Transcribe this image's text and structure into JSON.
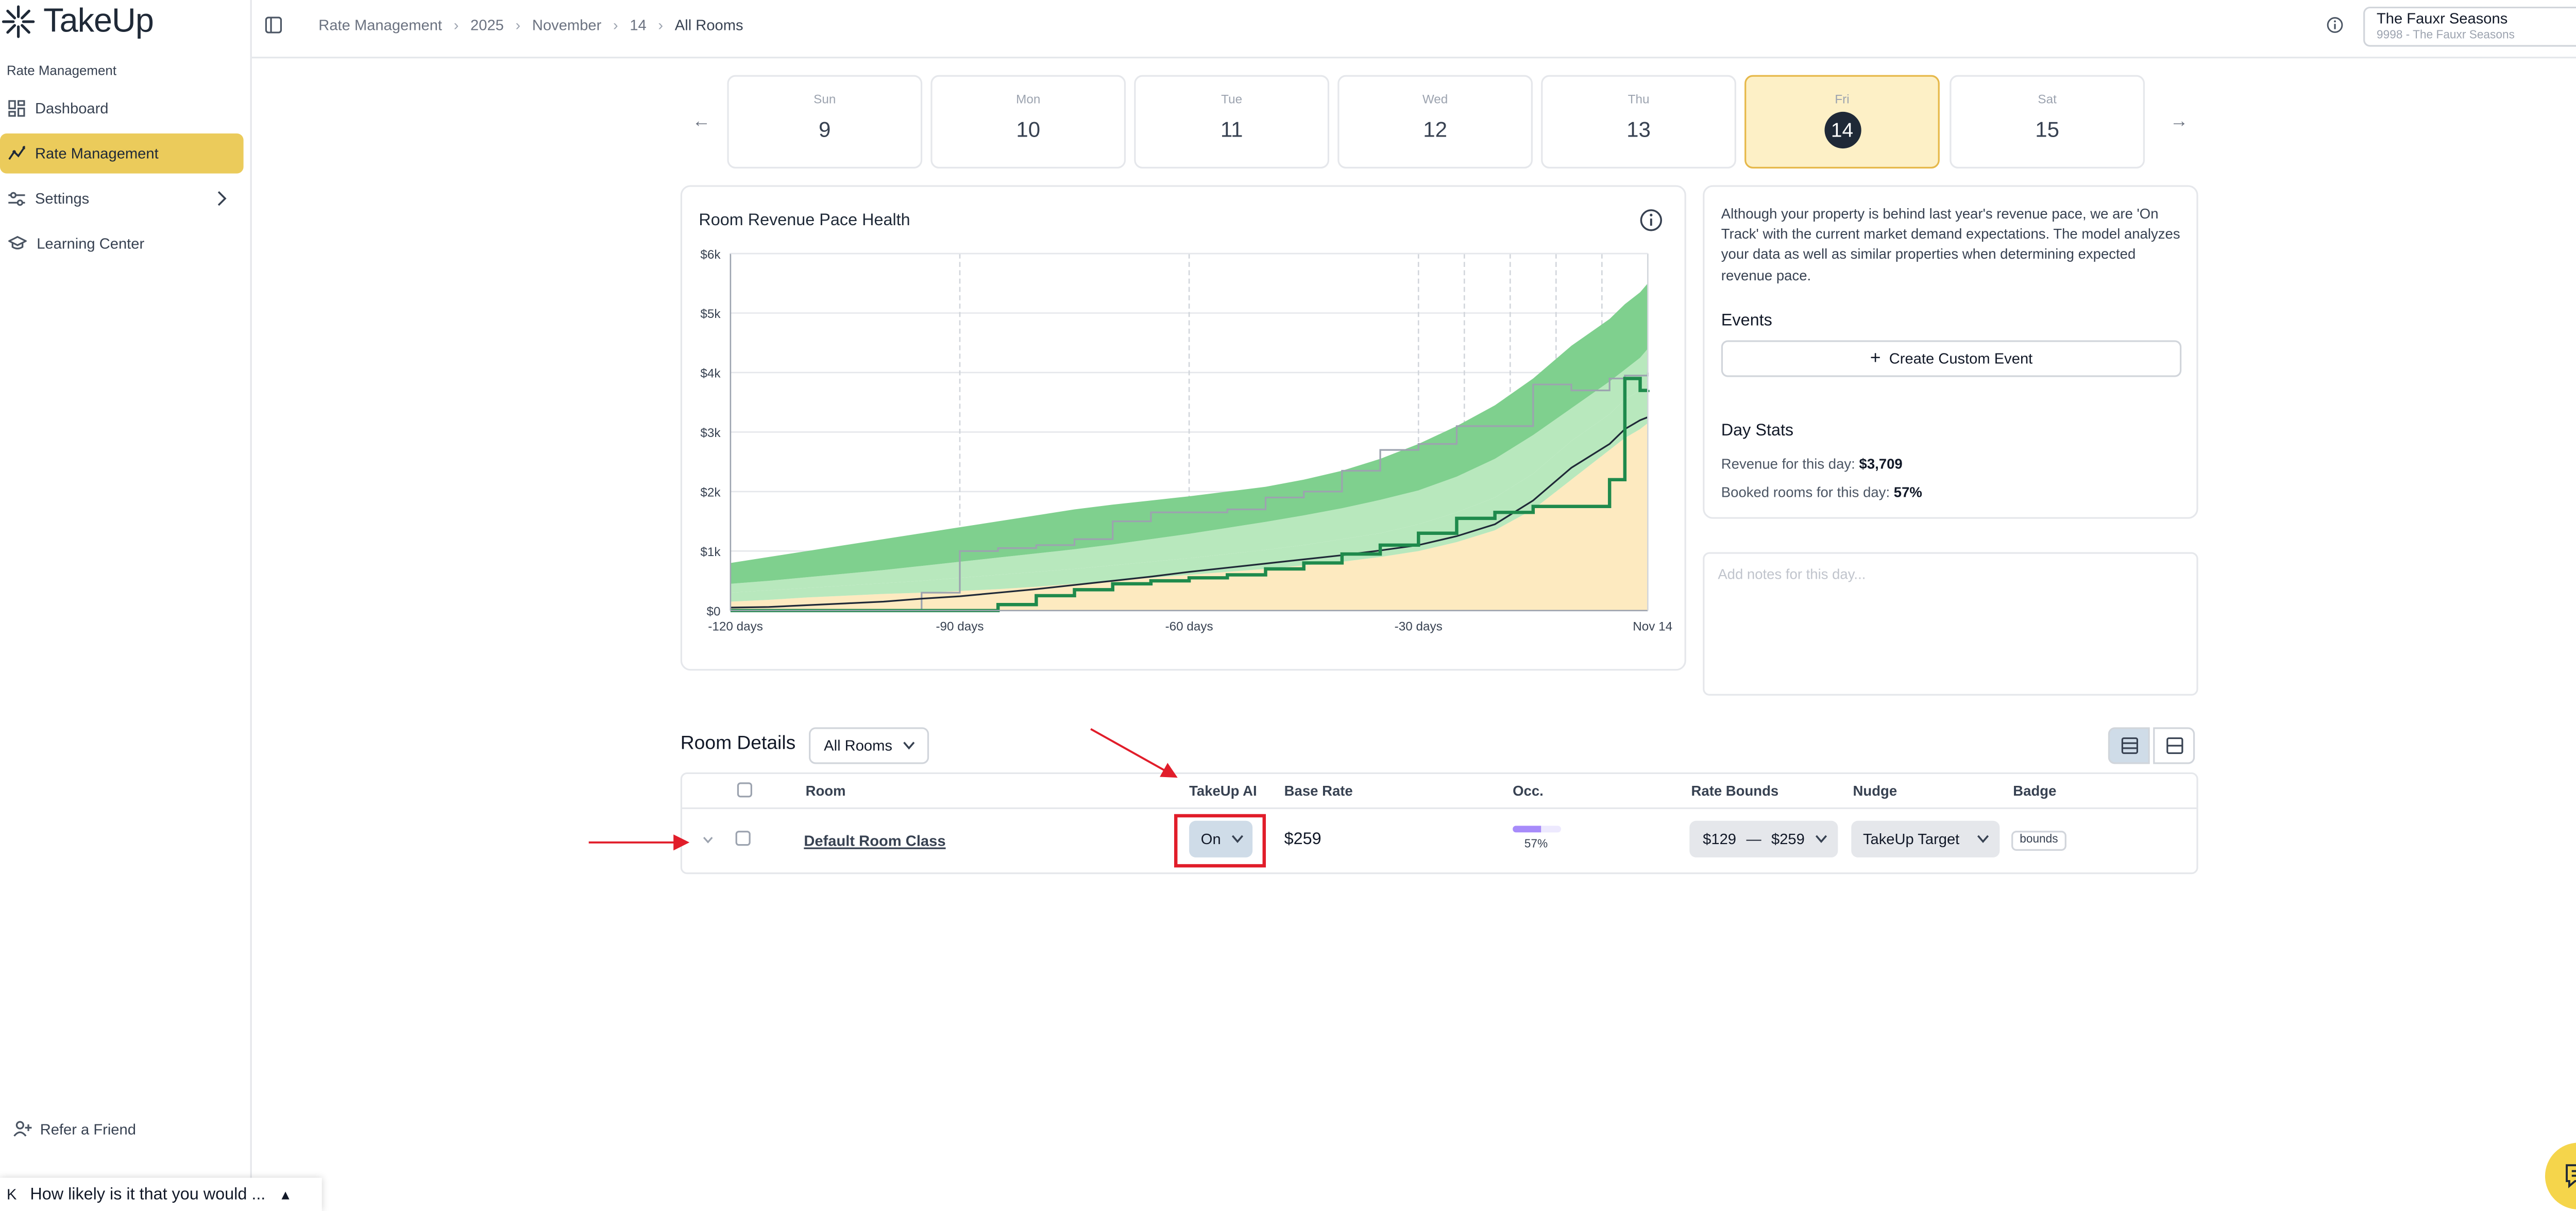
{
  "app": {
    "name": "TakeUp"
  },
  "sidebar": {
    "group_label": "Rate Management",
    "items": [
      {
        "label": "Dashboard",
        "icon": "grid-icon"
      },
      {
        "label": "Rate Management",
        "icon": "trend-icon",
        "active": true
      },
      {
        "label": "Settings",
        "icon": "sliders-icon",
        "has_chevron": true
      },
      {
        "label": "Learning Center",
        "icon": "graduation-cap-icon"
      }
    ],
    "refer_label": "Refer a Friend"
  },
  "header": {
    "breadcrumbs": [
      "Rate Management",
      "2025",
      "November",
      "14",
      "All Rooms"
    ],
    "property": {
      "name": "The Fauxr Seasons",
      "sub": "9998 - The Fauxr Seasons"
    }
  },
  "days": [
    {
      "name": "Sun",
      "num": "9"
    },
    {
      "name": "Mon",
      "num": "10"
    },
    {
      "name": "Tue",
      "num": "11"
    },
    {
      "name": "Wed",
      "num": "12"
    },
    {
      "name": "Thu",
      "num": "13"
    },
    {
      "name": "Fri",
      "num": "14",
      "selected": true
    },
    {
      "name": "Sat",
      "num": "15"
    }
  ],
  "chart_data": {
    "type": "area",
    "title": "Room Revenue Pace Health",
    "x_ticks": [
      "-120 days",
      "-90 days",
      "-60 days",
      "-30 days",
      "Nov 14"
    ],
    "x": [
      -120,
      -115,
      -110,
      -105,
      -100,
      -95,
      -90,
      -85,
      -80,
      -75,
      -70,
      -65,
      -60,
      -55,
      -50,
      -45,
      -40,
      -35,
      -30,
      -25,
      -20,
      -15,
      -10,
      -5,
      -3,
      -1,
      0
    ],
    "y_ticks": [
      "$0",
      "$1k",
      "$2k",
      "$3k",
      "$4k",
      "$5k",
      "$6k"
    ],
    "ylim": [
      0,
      6000
    ],
    "series": [
      {
        "values": [
          0,
          0,
          0,
          0,
          0,
          0,
          0,
          0,
          0,
          0,
          0,
          0,
          0,
          0,
          0,
          0,
          0,
          0,
          0,
          0,
          0,
          0,
          0,
          0,
          0,
          0,
          0
        ]
      },
      {
        "values": [
          150,
          180,
          220,
          250,
          280,
          300,
          330,
          360,
          400,
          450,
          500,
          550,
          600,
          650,
          700,
          760,
          820,
          900,
          1000,
          1150,
          1350,
          1700,
          2200,
          2700,
          2900,
          3050,
          3150
        ]
      },
      {
        "values": [
          300,
          340,
          380,
          420,
          460,
          500,
          550,
          600,
          650,
          700,
          760,
          820,
          880,
          950,
          1020,
          1100,
          1200,
          1300,
          1450,
          1650,
          1900,
          2300,
          2850,
          3300,
          3550,
          3700,
          3850
        ]
      },
      {
        "values": [
          450,
          500,
          560,
          620,
          680,
          750,
          820,
          890,
          960,
          1030,
          1110,
          1200,
          1290,
          1390,
          1490,
          1600,
          1720,
          1860,
          2020,
          2250,
          2550,
          2950,
          3400,
          3850,
          4050,
          4250,
          4400
        ]
      },
      {
        "values": [
          800,
          900,
          1000,
          1100,
          1200,
          1300,
          1400,
          1500,
          1600,
          1700,
          1780,
          1850,
          1920,
          2000,
          2080,
          2200,
          2350,
          2550,
          2800,
          3100,
          3450,
          3900,
          4450,
          4900,
          5150,
          5350,
          5500
        ]
      },
      {
        "values": [
          50,
          60,
          90,
          120,
          150,
          200,
          240,
          300,
          360,
          430,
          500,
          570,
          650,
          720,
          790,
          860,
          930,
          1010,
          1100,
          1250,
          1450,
          1850,
          2400,
          2800,
          3050,
          3200,
          3250
        ]
      },
      {
        "values": [
          0,
          0,
          0,
          0,
          0,
          0,
          0,
          100,
          250,
          350,
          450,
          500,
          550,
          600,
          700,
          800,
          950,
          1100,
          1300,
          1550,
          1650,
          1750,
          1750,
          2200,
          3900,
          3700,
          3709
        ]
      },
      {
        "values": [
          0,
          0,
          0,
          0,
          0,
          300,
          1000,
          1050,
          1100,
          1200,
          1500,
          1650,
          1650,
          1700,
          1900,
          2000,
          2350,
          2700,
          2800,
          3100,
          3100,
          3800,
          3700,
          3900,
          3950,
          3950,
          4000
        ]
      }
    ]
  },
  "side_panel": {
    "description": "Although your property is behind last year's revenue pace, we are 'On Track' with the current market demand expectations. The model analyzes your data as well as similar properties when determining expected revenue pace.",
    "events_title": "Events",
    "create_event_label": "Create Custom Event",
    "day_stats_title": "Day Stats",
    "revenue_label": "Revenue for this day:",
    "revenue_value": "$3,709",
    "booked_label": "Booked rooms for this day:",
    "booked_value": "57%"
  },
  "notes": {
    "placeholder": "Add notes for this day..."
  },
  "room_details": {
    "title": "Room Details",
    "filter_value": "All Rooms",
    "columns": [
      "Room",
      "TakeUp AI",
      "Base Rate",
      "Occ.",
      "Rate Bounds",
      "Nudge",
      "Badge"
    ],
    "rows": [
      {
        "room": "Default Room Class",
        "takeup_ai": "On",
        "base_rate": "$259",
        "occupancy": "57%",
        "occupancy_fraction": 0.57,
        "rate_min": "$129",
        "rate_sep": "—",
        "rate_max": "$259",
        "nudge": "TakeUp Target",
        "badge": "bounds"
      }
    ]
  },
  "survey": {
    "text": "How likely is it that you would ...",
    "prefix": "K"
  },
  "colors": {
    "accent": "#ebcb5b",
    "band_dark": "#7fd08e",
    "band_light": "#b8e8bd",
    "band_yellow": "#fdeac0",
    "actual_line": "#1f8a4c",
    "annotation_red": "#e11d2a"
  }
}
